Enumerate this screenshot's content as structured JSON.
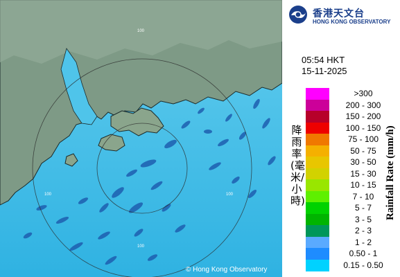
{
  "header": {
    "org_chinese": "香港天文台",
    "org_english": "HONG KONG OBSERVATORY",
    "time": "05:54 HKT",
    "date": "15-11-2025"
  },
  "map": {
    "copyright": "© Hong Kong Observatory",
    "range_ring_labels": [
      "100",
      "100",
      "100",
      "100"
    ]
  },
  "legend": {
    "title_chinese": "降雨率(毫米/小時)",
    "title_english": "Rainfall Rate (mm/h)",
    "items": [
      {
        "label": ">300",
        "color": "#ff00ff"
      },
      {
        "label": "200 - 300",
        "color": "#cc0099"
      },
      {
        "label": "150 - 200",
        "color": "#b7002a"
      },
      {
        "label": "100 - 150",
        "color": "#ee0000"
      },
      {
        "label": "75 - 100",
        "color": "#f07800"
      },
      {
        "label": "50 - 75",
        "color": "#f5b000"
      },
      {
        "label": "30 - 50",
        "color": "#e8c600"
      },
      {
        "label": "15 - 30",
        "color": "#d2d200"
      },
      {
        "label": "10 - 15",
        "color": "#99e600"
      },
      {
        "label": "7 - 10",
        "color": "#5ef000"
      },
      {
        "label": "5 - 7",
        "color": "#00d200"
      },
      {
        "label": "3 - 5",
        "color": "#00b400"
      },
      {
        "label": "2 - 3",
        "color": "#00965a"
      },
      {
        "label": "1 - 2",
        "color": "#5aaaff"
      },
      {
        "label": "0.50 - 1",
        "color": "#1e8cff"
      },
      {
        "label": "0.15 - 0.50",
        "color": "#00d2ff"
      }
    ]
  },
  "colors": {
    "sea": "#43bfe6",
    "land": "#7e9a86",
    "brand": "#1b3f8b",
    "echo": "#1e5fb0"
  }
}
